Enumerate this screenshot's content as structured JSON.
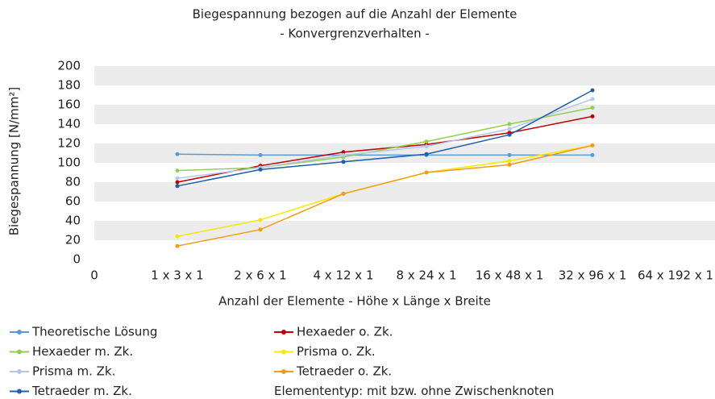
{
  "chart_data": {
    "type": "line",
    "title": "Biegespannung bezogen auf die Anzahl der Elemente",
    "subtitle": "- Konvergrenzverhalten -",
    "x_label": "Anzahl der Elemente - Höhe x Länge x Breite",
    "y_label": "Biegespannung [N/mm²]",
    "annotation": "Elemententyp: mit bzw. ohne Zwischenknoten",
    "categories": [
      "0",
      "1 x 3 x 1",
      "2 x 6 x 1",
      "4 x 12 x 1",
      "8 x 24 x 1",
      "16 x 48 x 1",
      "32 x 96 x 1",
      "64 x 192 x 1"
    ],
    "series": [
      {
        "name": "Theoretische Lösung",
        "color": "#5b9bd5",
        "values": [
          null,
          109,
          108,
          108,
          108,
          108,
          108,
          null
        ]
      },
      {
        "name": "Hexaeder o. Zk.",
        "color": "#c00000",
        "values": [
          null,
          80,
          97,
          111,
          119,
          131,
          148,
          null
        ]
      },
      {
        "name": "Hexaeder m. Zk.",
        "color": "#92d050",
        "values": [
          null,
          92,
          95,
          106,
          122,
          140,
          157,
          null
        ]
      },
      {
        "name": "Prisma o. Zk.",
        "color": "#f5e800",
        "values": [
          null,
          24,
          41,
          68,
          90,
          102,
          118,
          null
        ]
      },
      {
        "name": "Prisma m. Zk.",
        "color": "#b4c7e7",
        "values": [
          null,
          84,
          95,
          108,
          117,
          135,
          166,
          null
        ]
      },
      {
        "name": "Tetraeder o. Zk.",
        "color": "#f39c12",
        "values": [
          null,
          14,
          31,
          68,
          90,
          98,
          118,
          null
        ]
      },
      {
        "name": "Tetraeder m. Zk.",
        "color": "#1f5fa8",
        "values": [
          null,
          76,
          93,
          101,
          109,
          129,
          175,
          null
        ]
      }
    ],
    "ylim": [
      0,
      200
    ],
    "yticks": [
      0,
      20,
      40,
      60,
      80,
      100,
      120,
      140,
      160,
      180,
      200
    ],
    "grid": "banded",
    "band_color": "#ececec",
    "legend": "bottom"
  }
}
